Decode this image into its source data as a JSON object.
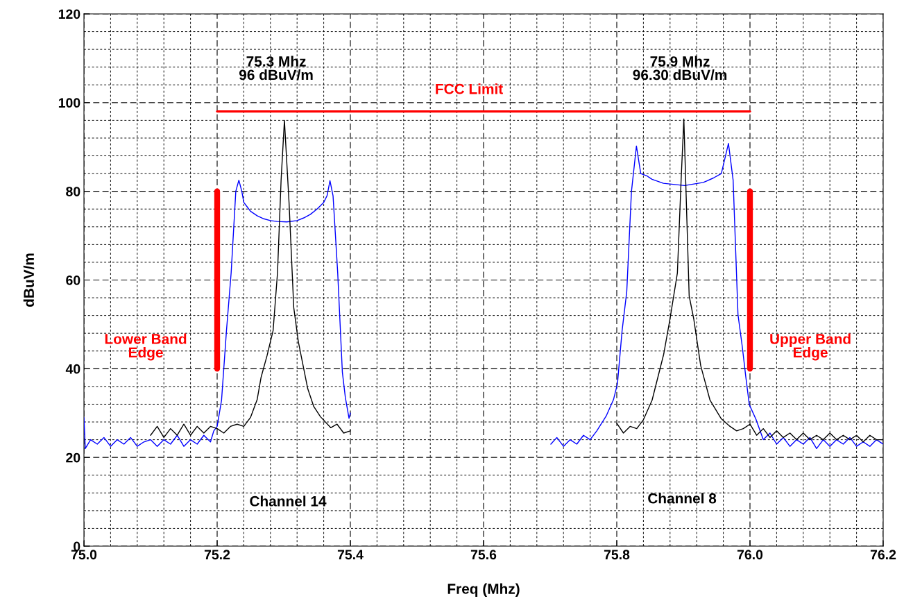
{
  "chart_data": {
    "type": "line",
    "xlabel": "Freq (Mhz)",
    "ylabel": "dBuV/m",
    "xlim": [
      75.0,
      76.2
    ],
    "ylim": [
      0,
      120
    ],
    "xticks": [
      {
        "value": 75.0,
        "label": "75.0"
      },
      {
        "value": 75.2,
        "label": "75.2"
      },
      {
        "value": 75.4,
        "label": "75.4"
      },
      {
        "value": 75.6,
        "label": "75.6"
      },
      {
        "value": 75.8,
        "label": "75.8"
      },
      {
        "value": 76.0,
        "label": "76.0"
      },
      {
        "value": 76.2,
        "label": "76.2"
      }
    ],
    "yticks": [
      0,
      20,
      40,
      60,
      80,
      100,
      120
    ],
    "grid": true,
    "line_style": "solid",
    "marker": "none",
    "series": [
      {
        "color": "#0000ff",
        "x": [
          75.0,
          75.002,
          75.01,
          75.02,
          75.03,
          75.04,
          75.05,
          75.06,
          75.07,
          75.08,
          75.09,
          75.1,
          75.11,
          75.12,
          75.13,
          75.14,
          75.15,
          75.16,
          75.17,
          75.18,
          75.19,
          75.195,
          75.2,
          75.2066,
          75.214,
          75.221,
          75.228,
          75.2326,
          75.237,
          75.24,
          75.245,
          75.25,
          75.26,
          75.27,
          75.28,
          75.29,
          75.3045,
          75.32,
          75.33,
          75.34,
          75.35,
          75.36,
          75.365,
          75.3694,
          75.374,
          75.381,
          75.388,
          75.3925,
          75.398,
          75.4,
          75.55,
          75.701,
          75.71,
          75.72,
          75.73,
          75.74,
          75.75,
          75.76,
          75.77,
          75.784,
          75.795,
          75.801,
          75.808,
          75.815,
          75.822,
          75.8295,
          75.836,
          75.845,
          75.853,
          75.87,
          75.9018,
          75.93,
          75.945,
          75.957,
          75.9677,
          75.9747,
          75.982,
          75.9885,
          75.9937,
          75.999,
          76.009,
          76.02,
          76.03,
          76.04,
          76.05,
          76.06,
          76.07,
          76.08,
          76.09,
          76.1,
          76.11,
          76.12,
          76.13,
          76.14,
          76.15,
          76.16,
          76.17,
          76.18,
          76.19,
          76.2
        ],
        "values": [
          29,
          22,
          24,
          23,
          24.5,
          22.5,
          24,
          23,
          24.5,
          22.5,
          23.5,
          24,
          22.5,
          24,
          23,
          25,
          22.5,
          24,
          23,
          25,
          23.5,
          26,
          27,
          32.9,
          48.6,
          61.6,
          80,
          82.5,
          80,
          77.5,
          76.5,
          75.5,
          74.5,
          73.8,
          73.4,
          73.2,
          73.1,
          73.4,
          74,
          74.8,
          76,
          77.5,
          79,
          82.4,
          79,
          61.6,
          39.2,
          33.5,
          28.8,
          30,
          null,
          23,
          24.5,
          22.5,
          24,
          23,
          25,
          24,
          26,
          29.3,
          33,
          36.6,
          48.6,
          57.4,
          79.9,
          90.2,
          84,
          83.5,
          82.7,
          81.8,
          81.3,
          82,
          83,
          84,
          90.8,
          82.5,
          52.2,
          44.9,
          38.2,
          31.9,
          28.6,
          24,
          25.5,
          23,
          24.5,
          22.5,
          24,
          23,
          24.5,
          22,
          24,
          22.5,
          24,
          23,
          24.5,
          22.5,
          23.5,
          22.5,
          24,
          23
        ]
      },
      {
        "color": "#000000",
        "x": [
          75.1,
          75.11,
          75.12,
          75.13,
          75.14,
          75.15,
          75.16,
          75.17,
          75.18,
          75.19,
          75.2,
          75.21,
          75.22,
          75.23,
          75.24,
          75.25,
          75.26,
          75.266,
          75.275,
          75.284,
          75.2906,
          75.296,
          75.301,
          75.308,
          75.315,
          75.322,
          75.33,
          75.336,
          75.345,
          75.355,
          75.3705,
          75.38,
          75.39,
          75.4,
          75.55,
          75.8,
          75.81,
          75.82,
          75.83,
          75.84,
          75.853,
          75.8705,
          75.8799,
          75.891,
          75.8966,
          75.9007,
          75.9087,
          75.9156,
          75.926,
          75.94,
          75.957,
          75.97,
          75.98,
          75.99,
          76.0,
          76.01,
          76.02,
          76.03,
          76.04,
          76.05,
          76.06,
          76.07,
          76.08,
          76.09,
          76.1,
          76.11,
          76.12,
          76.13,
          76.14,
          76.15,
          76.16,
          76.17,
          76.18,
          76.19,
          76.2
        ],
        "values": [
          25,
          27,
          24.5,
          26.5,
          25,
          27.5,
          25,
          27,
          25.5,
          27,
          26.5,
          25.5,
          27,
          27.5,
          27,
          29,
          33,
          38.1,
          43,
          48.6,
          61.6,
          82.5,
          96,
          77.3,
          53.8,
          46,
          40,
          35.5,
          31.5,
          29.2,
          26.7,
          27.5,
          25.5,
          26,
          null,
          27.7,
          25.5,
          27,
          26.5,
          28.5,
          32.9,
          43.3,
          51.2,
          61.6,
          82.5,
          96.3,
          56.4,
          51.2,
          40.7,
          32.9,
          28.7,
          27,
          26,
          26.5,
          27.5,
          25,
          26.5,
          24.5,
          26,
          24.5,
          25.5,
          24,
          25.5,
          24,
          25,
          24,
          25.5,
          24,
          25,
          24,
          25,
          23.5,
          25,
          24,
          24
        ]
      },
      {
        "color": "#ff0000",
        "x": [
          75.2,
          76.0
        ],
        "values": [
          98,
          98
        ]
      },
      {
        "color": "#ff0000",
        "x": [
          75.2,
          75.2
        ],
        "values": [
          40,
          80
        ]
      },
      {
        "color": "#ff0000",
        "x": [
          76.0,
          76.0
        ],
        "values": [
          40,
          80
        ]
      }
    ],
    "annotations": [
      "75.3 Mhz\n96 dBuV/m",
      "75.9 Mhz\n96.30 dBuV/m",
      "FCC Limit",
      "Lower Band\nEdge",
      "Upper Band\nEdge",
      "Channel 14",
      "Channel 8"
    ]
  }
}
